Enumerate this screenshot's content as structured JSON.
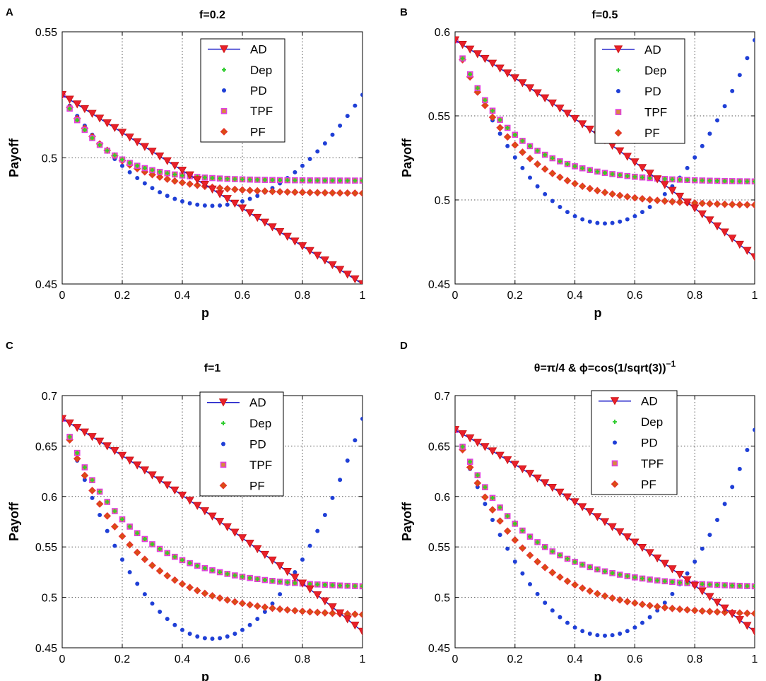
{
  "chart_data": [
    {
      "panel_letter": "A",
      "type": "line",
      "title": "f=0.2",
      "xlabel": "p",
      "ylabel": "Payoff",
      "xlim": [
        0,
        1
      ],
      "ylim": [
        0.45,
        0.55
      ],
      "xticks": [
        "0",
        "0.2",
        "0.4",
        "0.6",
        "0.8",
        "1"
      ],
      "yticks": [
        "0.45",
        "0.5",
        "0.55"
      ],
      "ytick_values": [
        0.45,
        0.5,
        0.55
      ],
      "grid": true,
      "legend_position": "top-center",
      "legend": [
        "AD",
        "Dep",
        "PD",
        "TPF",
        "PF"
      ],
      "series": [
        {
          "name": "AD",
          "model": "line",
          "start": 0.525,
          "end": 0.45,
          "curve": 0.0
        },
        {
          "name": "Dep",
          "model": "exp",
          "start": 0.525,
          "end": 0.491,
          "rate": 7
        },
        {
          "name": "PD",
          "model": "parabola",
          "start": 0.525,
          "min": 0.481
        },
        {
          "name": "TPF",
          "model": "exp",
          "start": 0.525,
          "end": 0.491,
          "rate": 7
        },
        {
          "name": "PF",
          "model": "exp",
          "start": 0.525,
          "end": 0.486,
          "rate": 5.5
        }
      ]
    },
    {
      "panel_letter": "B",
      "type": "line",
      "title": "f=0.5",
      "xlabel": "p",
      "ylabel": "Payoff",
      "xlim": [
        0,
        1
      ],
      "ylim": [
        0.45,
        0.6
      ],
      "xticks": [
        "0",
        "0.2",
        "0.4",
        "0.6",
        "0.8",
        "1"
      ],
      "yticks": [
        "0.45",
        "0.5",
        "0.55",
        "0.6"
      ],
      "ytick_values": [
        0.45,
        0.5,
        0.55,
        0.6
      ],
      "grid": true,
      "legend_position": "top-center",
      "legend": [
        "AD",
        "Dep",
        "PD",
        "TPF",
        "PF"
      ],
      "series": [
        {
          "name": "AD",
          "model": "line",
          "start": 0.595,
          "end": 0.466,
          "curve": 0.02
        },
        {
          "name": "Dep",
          "model": "exp",
          "start": 0.595,
          "end": 0.511,
          "rate": 5.5
        },
        {
          "name": "PD",
          "model": "parabola",
          "start": 0.595,
          "min": 0.486
        },
        {
          "name": "TPF",
          "model": "exp",
          "start": 0.595,
          "end": 0.511,
          "rate": 5.5
        },
        {
          "name": "PF",
          "model": "exp",
          "start": 0.595,
          "end": 0.497,
          "rate": 5.0
        }
      ]
    },
    {
      "panel_letter": "C",
      "type": "line",
      "title": "f=1",
      "xlabel": "p",
      "ylabel": "Payoff",
      "xlim": [
        0,
        1
      ],
      "ylim": [
        0.45,
        0.7
      ],
      "xticks": [
        "0",
        "0.2",
        "0.4",
        "0.6",
        "0.8",
        "1"
      ],
      "yticks": [
        "0.45",
        "0.5",
        "0.55",
        "0.6",
        "0.65",
        "0.7"
      ],
      "ytick_values": [
        0.45,
        0.5,
        0.55,
        0.6,
        0.65,
        0.7
      ],
      "grid": true,
      "legend_position": "top-center",
      "legend": [
        "AD",
        "Dep",
        "PD",
        "TPF",
        "PF"
      ],
      "series": [
        {
          "name": "AD",
          "model": "line",
          "start": 0.677,
          "end": 0.466,
          "curve": 0.035
        },
        {
          "name": "Dep",
          "model": "exp",
          "start": 0.677,
          "end": 0.511,
          "rate": 4.5
        },
        {
          "name": "PD",
          "model": "parabola",
          "start": 0.677,
          "min": 0.459
        },
        {
          "name": "TPF",
          "model": "exp",
          "start": 0.677,
          "end": 0.511,
          "rate": 4.5
        },
        {
          "name": "PF",
          "model": "exp",
          "start": 0.677,
          "end": 0.483,
          "rate": 4.5
        }
      ]
    },
    {
      "panel_letter": "D",
      "type": "line",
      "title": "θ=π/4 & ϕ=cos(1/sqrt(3))",
      "title_superscript": "−1",
      "xlabel": "p",
      "ylabel": "Payoff",
      "xlim": [
        0,
        1
      ],
      "ylim": [
        0.45,
        0.7
      ],
      "xticks": [
        "0",
        "0.2",
        "0.4",
        "0.6",
        "0.8",
        "1"
      ],
      "yticks": [
        "0.45",
        "0.5",
        "0.55",
        "0.6",
        "0.65",
        "0.7"
      ],
      "ytick_values": [
        0.45,
        0.5,
        0.55,
        0.6,
        0.65,
        0.7
      ],
      "grid": true,
      "legend_position": "top-center",
      "legend": [
        "AD",
        "Dep",
        "PD",
        "TPF",
        "PF"
      ],
      "series": [
        {
          "name": "AD",
          "model": "line",
          "start": 0.666,
          "end": 0.466,
          "curve": 0.035
        },
        {
          "name": "Dep",
          "model": "exp",
          "start": 0.666,
          "end": 0.511,
          "rate": 4.5
        },
        {
          "name": "PD",
          "model": "parabola",
          "start": 0.666,
          "min": 0.462
        },
        {
          "name": "TPF",
          "model": "exp",
          "start": 0.666,
          "end": 0.511,
          "rate": 4.5
        },
        {
          "name": "PF",
          "model": "exp",
          "start": 0.666,
          "end": 0.484,
          "rate": 4.5
        }
      ]
    }
  ],
  "colors": {
    "AD_line": "#1d1dc8",
    "AD_marker": "#e8202a",
    "Dep": "#2ecc2e",
    "PD": "#1f3fd6",
    "TPF_fill": "#d68a3c",
    "TPF_stroke": "#e040e0",
    "PF_fill": "#d94f12",
    "PF_stroke": "#e83030",
    "grid": "#555555"
  }
}
